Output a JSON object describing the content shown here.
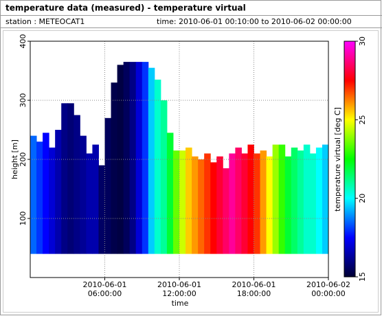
{
  "header": {
    "title": "temperature data (measured) - temperature virtual",
    "station": "station : METEOCAT1",
    "period": "time: 2010-06-01 00:10:00 to 2010-06-02 00:00:00"
  },
  "chart_data": {
    "type": "heightmap",
    "x_label": "time",
    "y_label": "height [m]",
    "colorbar_label": "temperature virtual [deg C]",
    "x": [
      0.25,
      0.75,
      1.25,
      1.75,
      2.25,
      2.75,
      3.25,
      3.75,
      4.25,
      4.75,
      5.25,
      5.75,
      6.25,
      6.75,
      7.25,
      7.75,
      8.25,
      8.75,
      9.25,
      9.75,
      10.25,
      10.75,
      11.25,
      11.75,
      12.25,
      12.75,
      13.25,
      13.75,
      14.25,
      14.75,
      15.25,
      15.75,
      16.25,
      16.75,
      17.25,
      17.75,
      18.25,
      18.75,
      19.25,
      19.75,
      20.25,
      20.75,
      21.25,
      21.75,
      22.25,
      22.75,
      23.25,
      23.75
    ],
    "heights": [
      240,
      230,
      245,
      220,
      250,
      295,
      295,
      275,
      240,
      210,
      225,
      190,
      270,
      330,
      360,
      365,
      365,
      365,
      365,
      355,
      335,
      300,
      245,
      215,
      215,
      220,
      205,
      200,
      210,
      195,
      205,
      185,
      210,
      220,
      210,
      225,
      210,
      215,
      205,
      225,
      225,
      205,
      220,
      215,
      225,
      210,
      220,
      225
    ],
    "temperatures": [
      18.5,
      18,
      17.5,
      17,
      16.5,
      16,
      15.8,
      16,
      16.2,
      16.5,
      16.5,
      15.6,
      15.5,
      15.3,
      15.2,
      15.5,
      16,
      17,
      18,
      19.5,
      20.5,
      21,
      22,
      23.5,
      24.5,
      25.5,
      26,
      26.5,
      27,
      27.5,
      28,
      28.5,
      29,
      28.5,
      28,
      27.5,
      27,
      26,
      25,
      24,
      23,
      22,
      21.5,
      21,
      20.5,
      20.5,
      20,
      19.5
    ],
    "base": 40,
    "xlim": [
      0,
      24
    ],
    "xticks": [
      {
        "value": 6,
        "label": "2010-06-01 06:00:00"
      },
      {
        "value": 12,
        "label": "2010-06-01 12:00:00"
      },
      {
        "value": 18,
        "label": "2010-06-01 18:00:00"
      },
      {
        "value": 24,
        "label": "2010-06-02 00:00:00"
      }
    ],
    "ylim": [
      0,
      400
    ],
    "yticks": [
      100,
      200,
      300,
      400
    ],
    "clim": [
      15,
      30
    ],
    "cticks": [
      15,
      20,
      25,
      30
    ],
    "colormap": [
      "#000033",
      "#0000ff",
      "#00ffff",
      "#00ff00",
      "#ffff00",
      "#ff0000",
      "#ff00ff"
    ],
    "grid": true
  }
}
